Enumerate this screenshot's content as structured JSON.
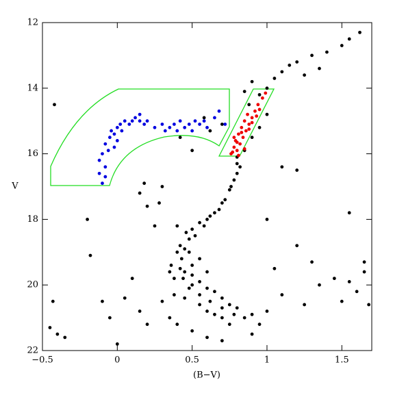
{
  "chart_data": {
    "type": "scatter",
    "x_label": "(B−V)",
    "y_label": "V",
    "xlim": [
      -0.5,
      1.7
    ],
    "xticks": [
      {
        "value": -0.5,
        "label": "−0.5"
      },
      0,
      0.5,
      1,
      1.5
    ],
    "ylim": [
      22,
      12
    ],
    "yticks": [
      12,
      14,
      16,
      18,
      20,
      22
    ],
    "series": [
      {
        "color": "#000000",
        "x": [
          0.8,
          0.82,
          0.78,
          0.75,
          0.72,
          0.68,
          0.62,
          0.55,
          0.5,
          0.48,
          0.45,
          0.43,
          0.42,
          0.44,
          0.48,
          0.55,
          0.62,
          0.7,
          0.78,
          0.85,
          1.0,
          1.05,
          1.1,
          1.15,
          1.2,
          1.3,
          1.4,
          1.5,
          1.55,
          1.62,
          0.95,
          0.88,
          0.85,
          1.25,
          1.35,
          0.9,
          -0.45,
          -0.4,
          -0.35,
          -0.43,
          -0.2,
          -0.18,
          -0.1,
          -0.05,
          0.0,
          0.05,
          0.1,
          0.15,
          0.2,
          0.25,
          0.3,
          0.35,
          0.15,
          0.2,
          0.18,
          0.28,
          0.3,
          1.0,
          1.05,
          1.1,
          1.2,
          1.25,
          1.3,
          1.35,
          1.45,
          1.5,
          1.55,
          1.6,
          1.65,
          1.55,
          1.65,
          1.68,
          1.1,
          1.2,
          0.95,
          1.0,
          0.9,
          0.7,
          0.6,
          0.5,
          0.4,
          0.35,
          0.38,
          0.4,
          0.42,
          0.5,
          0.55,
          0.6,
          0.65,
          0.7,
          0.75,
          0.8,
          0.5,
          0.45,
          0.55,
          0.6,
          0.65,
          0.7,
          0.75,
          0.9,
          0.48,
          0.52,
          0.58,
          0.46,
          0.4,
          0.38,
          0.36,
          0.55,
          0.6,
          0.5,
          0.45,
          0.6,
          0.65,
          0.7,
          0.76,
          0.8,
          0.8,
          0.85,
          0.9,
          0.95,
          1.0,
          0.58,
          0.62,
          0.7,
          0.42,
          0.5,
          -0.42
        ],
        "values": [
          16.1,
          16.4,
          16.8,
          17.1,
          17.4,
          17.7,
          17.9,
          18.1,
          18.3,
          18.6,
          18.9,
          19.2,
          19.5,
          19.8,
          20.1,
          20.3,
          20.5,
          20.7,
          20.9,
          21.0,
          14.0,
          13.7,
          13.5,
          13.3,
          13.2,
          13.0,
          12.9,
          12.7,
          12.5,
          12.3,
          14.2,
          14.5,
          14.1,
          13.6,
          13.4,
          13.8,
          21.3,
          21.5,
          21.6,
          20.5,
          18.0,
          19.1,
          20.5,
          21.0,
          21.8,
          20.4,
          19.8,
          20.8,
          21.2,
          18.2,
          20.5,
          19.6,
          17.2,
          17.6,
          16.9,
          17.5,
          17.0,
          18.0,
          19.5,
          20.3,
          18.8,
          20.6,
          19.3,
          20.0,
          19.8,
          20.5,
          19.9,
          20.2,
          19.6,
          17.8,
          19.3,
          20.6,
          16.4,
          16.5,
          21.2,
          20.8,
          21.5,
          21.7,
          21.6,
          21.4,
          21.2,
          21.0,
          20.3,
          19.0,
          18.8,
          19.4,
          19.9,
          20.1,
          20.2,
          20.4,
          20.6,
          20.7,
          20.0,
          20.4,
          20.6,
          20.8,
          20.9,
          21.0,
          21.2,
          20.9,
          19.0,
          18.5,
          18.2,
          18.4,
          18.2,
          19.8,
          19.4,
          19.2,
          19.6,
          19.7,
          19.6,
          18.0,
          17.8,
          17.5,
          17.0,
          16.6,
          16.3,
          15.9,
          15.5,
          15.2,
          14.8,
          14.9,
          15.3,
          15.1,
          15.5,
          15.9,
          14.5
        ]
      },
      {
        "color": "#0000e0",
        "x": [
          -0.1,
          -0.12,
          -0.08,
          -0.12,
          -0.1,
          -0.06,
          -0.08,
          -0.05,
          -0.04,
          -0.02,
          0.0,
          0.02,
          0.05,
          0.08,
          0.1,
          0.12,
          0.15,
          0.18,
          0.2,
          0.25,
          0.3,
          0.32,
          0.35,
          0.38,
          0.4,
          0.42,
          0.45,
          0.48,
          0.5,
          0.52,
          0.55,
          0.58,
          0.6,
          0.65,
          0.68,
          0.72,
          -0.02,
          -0.08,
          0.03,
          0.15,
          0.0
        ],
        "values": [
          16.9,
          16.6,
          16.4,
          16.2,
          16.0,
          15.9,
          15.7,
          15.5,
          15.3,
          15.4,
          15.2,
          15.1,
          15.0,
          15.1,
          15.0,
          14.9,
          15.0,
          15.1,
          15.0,
          15.2,
          15.1,
          15.3,
          15.2,
          15.1,
          15.3,
          15.0,
          15.2,
          15.1,
          15.3,
          15.0,
          15.1,
          15.0,
          15.2,
          14.9,
          14.7,
          15.1,
          15.8,
          16.7,
          15.3,
          14.8,
          15.6
        ]
      },
      {
        "color": "#ee0000",
        "x": [
          0.76,
          0.8,
          0.78,
          0.82,
          0.79,
          0.84,
          0.81,
          0.86,
          0.83,
          0.88,
          0.85,
          0.9,
          0.87,
          0.92,
          0.94,
          0.97,
          0.99,
          0.78,
          0.8,
          0.85,
          0.77,
          0.83,
          0.88,
          0.9,
          0.93,
          0.95,
          0.81
        ],
        "values": [
          16.0,
          15.9,
          15.8,
          15.7,
          15.6,
          15.5,
          15.4,
          15.3,
          15.2,
          15.1,
          15.0,
          14.9,
          14.8,
          14.7,
          14.5,
          14.3,
          14.15,
          15.5,
          15.65,
          15.85,
          15.95,
          15.35,
          15.25,
          15.05,
          14.85,
          14.65,
          16.05
        ]
      }
    ]
  }
}
